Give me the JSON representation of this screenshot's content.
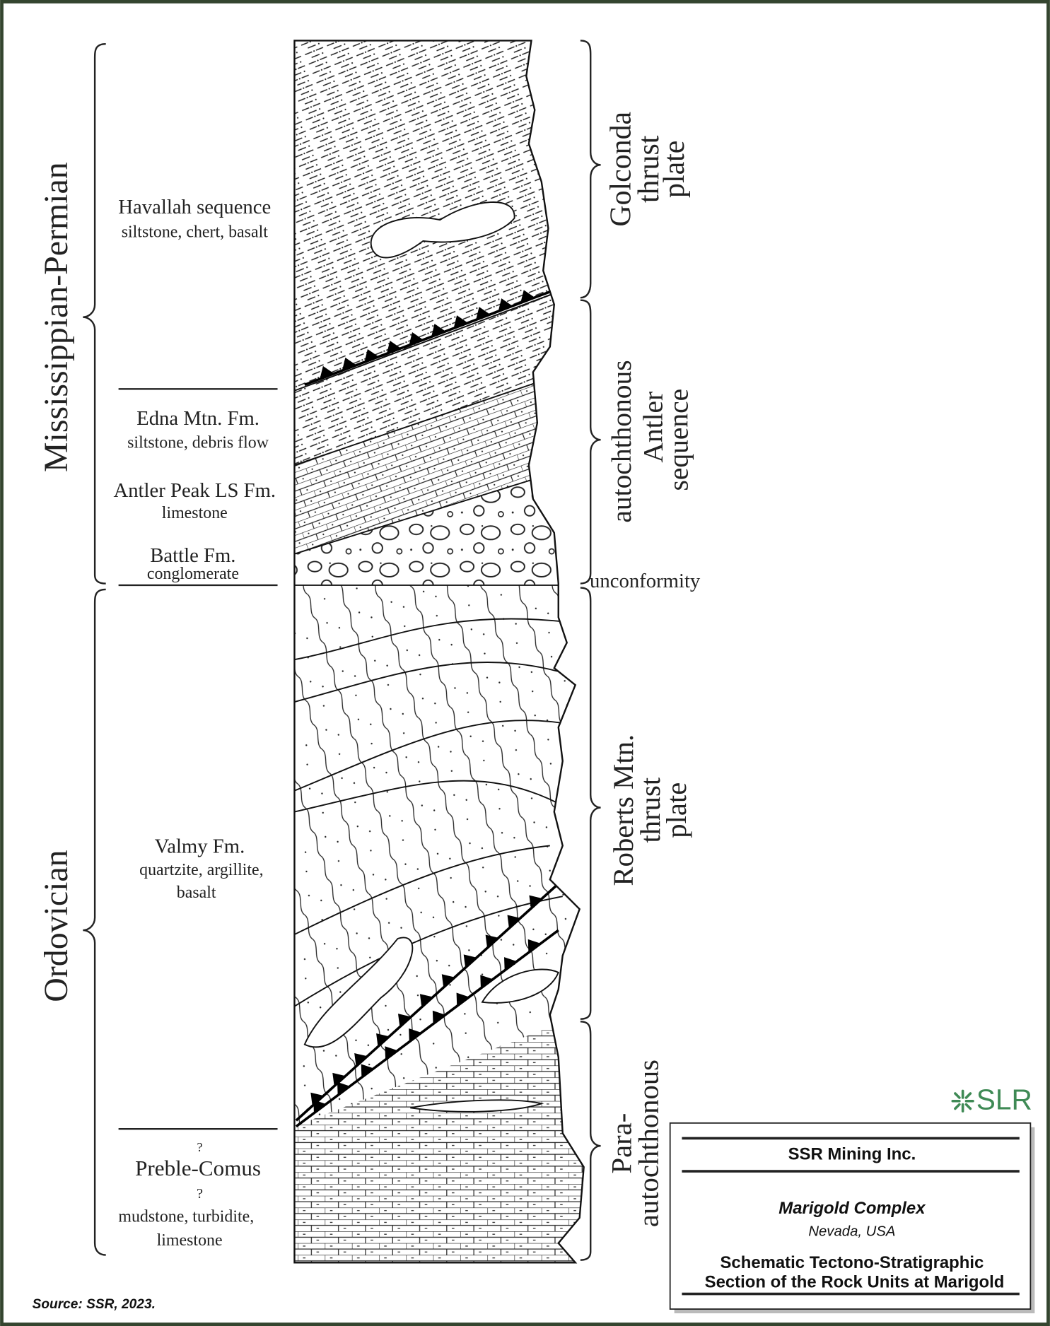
{
  "periods": [
    "Mississippian-Permian",
    "Ordovician"
  ],
  "units": [
    {
      "name": "Havallah sequence",
      "description": [
        "siltstone, chert, basalt"
      ]
    },
    {
      "name": "Edna Mtn. Fm.",
      "description": [
        "siltstone, debris flow"
      ]
    },
    {
      "name": "Antler Peak LS Fm.",
      "description": [
        "limestone"
      ]
    },
    {
      "name": "Battle Fm.",
      "description": [
        "conglomerate"
      ]
    },
    {
      "name": "Valmy Fm.",
      "description": [
        "quartzite, argillite,",
        "basalt"
      ]
    },
    {
      "name": "Preble-Comus",
      "query_above": "?",
      "query_below": "?",
      "description": [
        "mudstone, turbidite,",
        "limestone"
      ]
    }
  ],
  "plates": [
    {
      "lines": [
        "Golconda",
        "thrust",
        "plate"
      ]
    },
    {
      "lines": [
        "autochthonous",
        "Antler",
        "sequence"
      ]
    },
    {
      "lines": [
        "Roberts Mtn.",
        "thrust",
        "plate"
      ]
    },
    {
      "lines": [
        "Para-",
        "autochthonous"
      ]
    }
  ],
  "unconformity": "unconformity",
  "logo": "SLR",
  "title_box": {
    "company": "SSR Mining Inc.",
    "project": "Marigold Complex",
    "location": "Nevada, USA",
    "title": [
      "Schematic Tectono-Stratigraphic",
      "Section of the Rock Units at Marigold"
    ]
  },
  "source": "Source:  SSR, 2023."
}
